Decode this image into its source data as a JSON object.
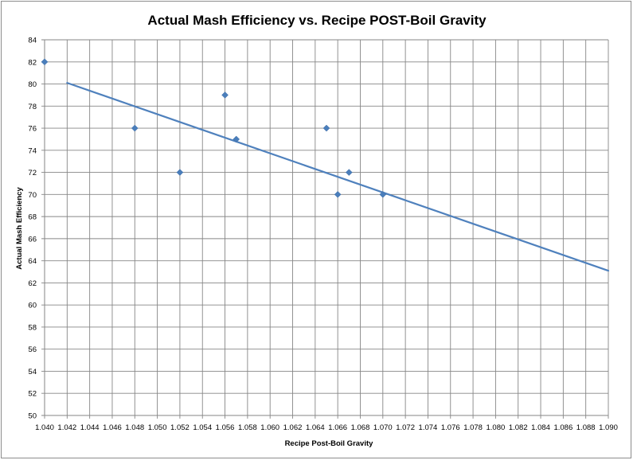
{
  "chart_data": {
    "type": "scatter",
    "title": "Actual Mash Efficiency vs. Recipe POST-Boil Gravity",
    "xlabel": "Recipe Post-Boil Gravity",
    "ylabel": "Actual Mash  Efficiency",
    "xlim": [
      1.04,
      1.09
    ],
    "ylim": [
      50,
      84
    ],
    "x_ticks": [
      "1.040",
      "1.042",
      "1.044",
      "1.046",
      "1.048",
      "1.050",
      "1.052",
      "1.054",
      "1.056",
      "1.058",
      "1.060",
      "1.062",
      "1.064",
      "1.066",
      "1.068",
      "1.070",
      "1.072",
      "1.074",
      "1.076",
      "1.078",
      "1.080",
      "1.082",
      "1.084",
      "1.086",
      "1.088",
      "1.090"
    ],
    "y_ticks": [
      "50",
      "52",
      "54",
      "56",
      "58",
      "60",
      "62",
      "64",
      "66",
      "68",
      "70",
      "72",
      "74",
      "76",
      "78",
      "80",
      "82",
      "84"
    ],
    "grid": true,
    "legend": "none",
    "marker_color": "#4a7ebb",
    "trendline_color": "#4f81bd",
    "series": [
      {
        "points": [
          {
            "x": 1.04,
            "y": 82
          },
          {
            "x": 1.048,
            "y": 76
          },
          {
            "x": 1.052,
            "y": 72
          },
          {
            "x": 1.056,
            "y": 79
          },
          {
            "x": 1.057,
            "y": 75
          },
          {
            "x": 1.065,
            "y": 76
          },
          {
            "x": 1.066,
            "y": 70
          },
          {
            "x": 1.067,
            "y": 72
          },
          {
            "x": 1.07,
            "y": 70
          }
        ]
      }
    ],
    "trendline": {
      "type": "linear",
      "from": {
        "x": 1.042,
        "y": 80.1
      },
      "to": {
        "x": 1.09,
        "y": 63.1
      }
    }
  }
}
